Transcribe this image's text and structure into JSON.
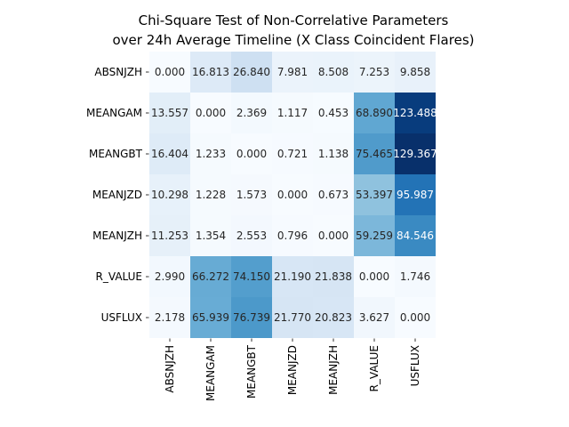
{
  "chart_data": {
    "type": "heatmap",
    "title_lines": [
      "Chi-Square Test of Non-Correlative Parameters",
      "over 24h Average Timeline (X Class Coincident Flares)"
    ],
    "row_labels": [
      "ABSNJZH",
      "MEANGAM",
      "MEANGBT",
      "MEANJZD",
      "MEANJZH",
      "R_VALUE",
      "USFLUX"
    ],
    "col_labels": [
      "ABSNJZH",
      "MEANGAM",
      "MEANGBT",
      "MEANJZD",
      "MEANJZH",
      "R_VALUE",
      "USFLUX"
    ],
    "values": [
      [
        0.0,
        16.813,
        26.84,
        7.981,
        8.508,
        7.253,
        9.858
      ],
      [
        13.557,
        0.0,
        2.369,
        1.117,
        0.453,
        68.89,
        123.488
      ],
      [
        16.404,
        1.233,
        0.0,
        0.721,
        1.138,
        75.465,
        129.367
      ],
      [
        10.298,
        1.228,
        1.573,
        0.0,
        0.673,
        53.397,
        95.987
      ],
      [
        11.253,
        1.354,
        2.553,
        0.796,
        0.0,
        59.259,
        84.546
      ],
      [
        2.99,
        66.272,
        74.15,
        21.19,
        21.838,
        0.0,
        1.746
      ],
      [
        2.178,
        65.939,
        76.739,
        21.77,
        20.823,
        3.627,
        0.0
      ]
    ],
    "colormap": "Blues",
    "vmin": 0,
    "vmax": 129.367,
    "annotate_decimals": 3,
    "colorbar": false
  }
}
